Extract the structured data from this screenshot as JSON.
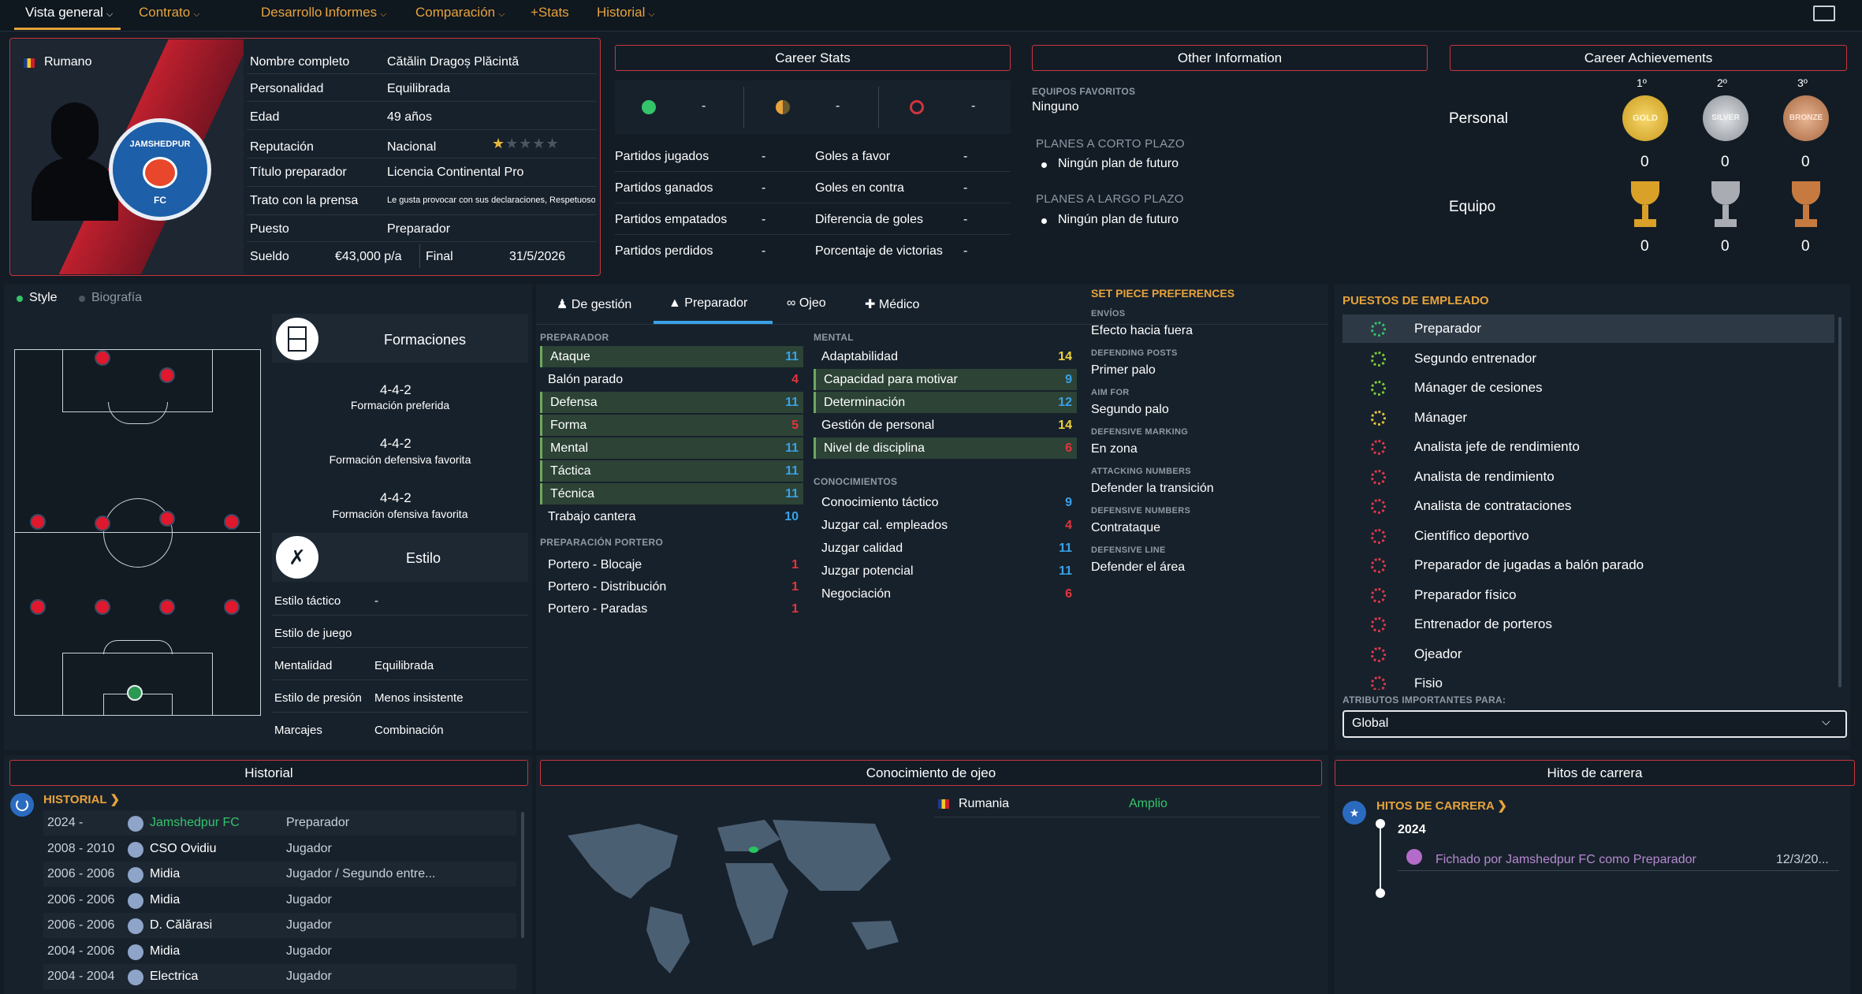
{
  "nav": {
    "items": [
      "Vista general",
      "Contrato",
      "Desarrollo",
      "Informes",
      "Comparación",
      "+Stats",
      "Historial"
    ]
  },
  "profile": {
    "nationality": "Rumano",
    "club_badge_top": "JAMSHEDPUR",
    "club_badge_bottom": "FC",
    "fields": [
      [
        "Nombre completo",
        "Cătălin Dragoș Plăcintă"
      ],
      [
        "Personalidad",
        "Equilibrada"
      ],
      [
        "Edad",
        "49 años"
      ],
      [
        "Reputación",
        "Nacional"
      ],
      [
        "Título preparador",
        "Licencia Continental Pro"
      ],
      [
        "Trato con la prensa",
        "Le gusta provocar con sus declaraciones, Respetuoso con la prensa"
      ],
      [
        "Puesto",
        "Preparador"
      ]
    ],
    "salary_label": "Sueldo",
    "salary": "€43,000 p/a",
    "end_label": "Final",
    "end_date": "31/5/2026",
    "reputation_stars": 1.5
  },
  "career_stats": {
    "title": "Career Stats",
    "top": [
      "-",
      "-",
      "-"
    ],
    "rows": [
      [
        "Partidos jugados",
        "-",
        "Goles a favor",
        "-"
      ],
      [
        "Partidos ganados",
        "-",
        "Goles en contra",
        "-"
      ],
      [
        "Partidos empatados",
        "-",
        "Diferencia de goles",
        "-"
      ],
      [
        "Partidos perdidos",
        "-",
        "Porcentaje de victorias",
        "-"
      ]
    ]
  },
  "other_info": {
    "title": "Other Information",
    "fav_label": "EQUIPOS FAVORITOS",
    "fav_value": "Ninguno",
    "short_label": "PLANES A CORTO PLAZO",
    "short_value": "Ningún plan de futuro",
    "long_label": "PLANES A LARGO PLAZO",
    "long_value": "Ningún plan de futuro"
  },
  "achievements": {
    "title": "Career Achievements",
    "cols": [
      "1º",
      "2º",
      "3º"
    ],
    "medals": [
      "GOLD",
      "SILVER",
      "BRONZE"
    ],
    "personal_label": "Personal",
    "team_label": "Equipo",
    "personal": [
      "0",
      "0",
      "0"
    ],
    "team": [
      "0",
      "0",
      "0"
    ]
  },
  "style_tabs": [
    "Style",
    "Biografía"
  ],
  "formations": {
    "title": "Formaciones",
    "pref": "4-4-2",
    "pref_label": "Formación preferida",
    "def": "4-4-2",
    "def_label": "Formación defensiva favorita",
    "off": "4-4-2",
    "off_label": "Formación ofensiva favorita"
  },
  "estilo": {
    "title": "Estilo",
    "rows": [
      [
        "Estilo táctico",
        "-"
      ],
      [
        "Estilo de juego",
        ""
      ],
      [
        "Mentalidad",
        "Equilibrada"
      ],
      [
        "Estilo de presión",
        "Menos insistente"
      ],
      [
        "Marcajes",
        "Combinación"
      ]
    ]
  },
  "attr_tabs": [
    "De gestión",
    "Preparador",
    "Ojeo",
    "Médico"
  ],
  "preparador": {
    "label": "PREPARADOR",
    "items": [
      [
        "Ataque",
        "11",
        1
      ],
      [
        "Balón parado",
        "4",
        0
      ],
      [
        "Defensa",
        "11",
        1
      ],
      [
        "Forma",
        "5",
        1
      ],
      [
        "Mental",
        "11",
        1
      ],
      [
        "Táctica",
        "11",
        1
      ],
      [
        "Técnica",
        "11",
        1
      ],
      [
        "Trabajo cantera",
        "10",
        0
      ]
    ]
  },
  "portero": {
    "label": "PREPARACIÓN PORTERO",
    "items": [
      [
        "Portero - Blocaje",
        "1"
      ],
      [
        "Portero - Distribución",
        "1"
      ],
      [
        "Portero - Paradas",
        "1"
      ]
    ]
  },
  "mental": {
    "label": "MENTAL",
    "items": [
      [
        "Adaptabilidad",
        "14",
        0
      ],
      [
        "Capacidad para motivar",
        "9",
        1
      ],
      [
        "Determinación",
        "12",
        1
      ],
      [
        "Gestión de personal",
        "14",
        0
      ],
      [
        "Nivel de disciplina",
        "6",
        1
      ]
    ]
  },
  "conocimientos": {
    "label": "CONOCIMIENTOS",
    "items": [
      [
        "Conocimiento táctico",
        "9"
      ],
      [
        "Juzgar cal. empleados",
        "4"
      ],
      [
        "Juzgar calidad",
        "11"
      ],
      [
        "Juzgar potencial",
        "11"
      ],
      [
        "Negociación",
        "6"
      ]
    ]
  },
  "set_piece": {
    "title": "SET PIECE PREFERENCES",
    "items": [
      [
        "ENVÍOS",
        "Efecto hacia fuera"
      ],
      [
        "DEFENDING POSTS",
        "Primer palo"
      ],
      [
        "AIM FOR",
        "Segundo palo"
      ],
      [
        "DEFENSIVE MARKING",
        "En zona"
      ],
      [
        "ATTACKING NUMBERS",
        "Defender la transición"
      ],
      [
        "DEFENSIVE NUMBERS",
        "Contrataque"
      ],
      [
        "DEFENSIVE LINE",
        "Defender el área"
      ]
    ]
  },
  "empleo": {
    "title": "PUESTOS DE EMPLEADO",
    "items": [
      "Preparador",
      "Segundo entrenador",
      "Mánager de cesiones",
      "Mánager",
      "Analista jefe de rendimiento",
      "Analista de rendimiento",
      "Analista de contrataciones",
      "Científico deportivo",
      "Preparador de jugadas a balón parado",
      "Preparador físico",
      "Entrenador de porteros",
      "Ojeador",
      "Fisio"
    ],
    "attr_label": "ATRIBUTOS IMPORTANTES PARA:",
    "attr_value": "Global"
  },
  "historial": {
    "title": "Historial",
    "link": "HISTORIAL",
    "rows": [
      [
        "2024 -",
        "Jamshedpur FC",
        "Preparador"
      ],
      [
        "2008 - 2010",
        "CSO Ovidiu",
        "Jugador"
      ],
      [
        "2006 - 2006",
        "Midia",
        "Jugador / Segundo entre..."
      ],
      [
        "2006 - 2006",
        "Midia",
        "Jugador"
      ],
      [
        "2006 - 2006",
        "D. Călărasi",
        "Jugador"
      ],
      [
        "2004 - 2006",
        "Midia",
        "Jugador"
      ],
      [
        "2004 - 2004",
        "Electrica",
        "Jugador"
      ]
    ]
  },
  "ojeo": {
    "title": "Conocimiento de ojeo",
    "country": "Rumania",
    "level": "Amplio"
  },
  "hitos": {
    "title": "Hitos de carrera",
    "link": "HITOS DE CARRERA",
    "year": "2024",
    "event": "Fichado por Jamshedpur FC como Preparador",
    "date": "12/3/20..."
  },
  "colors": {
    "accent": "#e7a33c",
    "panel": "#17212b",
    "border": "#c9353f",
    "highlight": "#2c4336"
  }
}
